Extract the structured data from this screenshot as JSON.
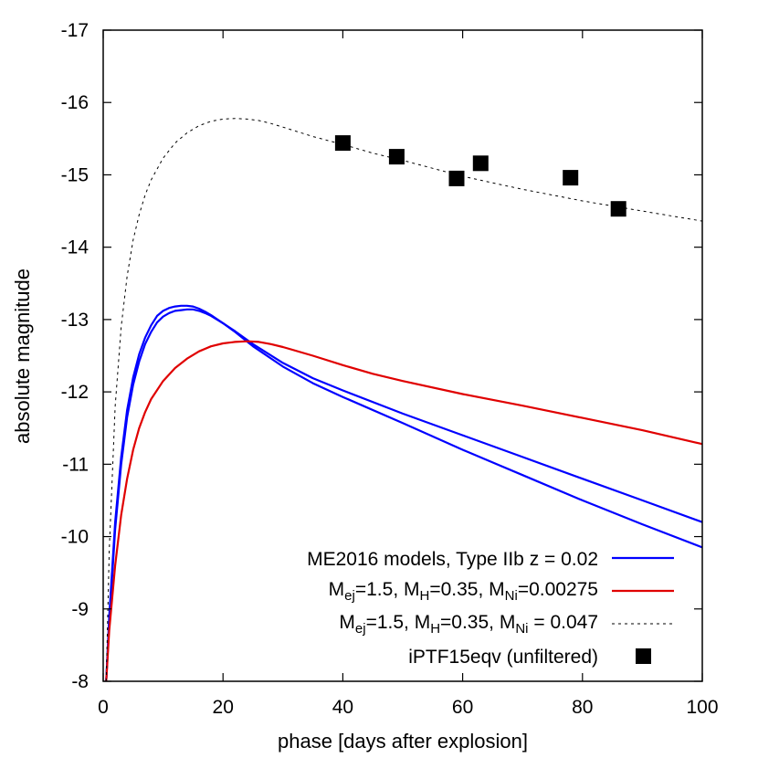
{
  "chart_data": {
    "type": "line",
    "title": "",
    "xlabel": "phase [days after explosion]",
    "ylabel": "absolute magnitude",
    "xlim": [
      0,
      100
    ],
    "ylim": [
      -8,
      -17
    ],
    "y_inverted": true,
    "grid": false,
    "legend_position": "bottom-right",
    "x_ticks": [
      0,
      20,
      40,
      60,
      80,
      100
    ],
    "y_ticks": [
      -8,
      -9,
      -10,
      -11,
      -12,
      -13,
      -14,
      -15,
      -16,
      -17
    ],
    "series": [
      {
        "name": "ME2016 models, Type IIb z = 0.02",
        "color": "#0000ff",
        "style": "solid",
        "x": [
          0.5,
          1,
          2,
          3,
          4,
          5,
          6,
          7,
          8,
          9,
          10,
          11,
          12,
          13,
          14,
          15,
          16,
          17,
          18,
          20,
          22,
          25,
          30,
          35,
          40,
          50,
          60,
          70,
          80,
          90,
          100
        ],
        "y": [
          -8.0,
          -8.9,
          -10.2,
          -11.1,
          -11.75,
          -12.2,
          -12.52,
          -12.75,
          -12.92,
          -13.05,
          -13.12,
          -13.16,
          -13.18,
          -13.19,
          -13.19,
          -13.18,
          -13.15,
          -13.11,
          -13.06,
          -12.95,
          -12.83,
          -12.63,
          -12.35,
          -12.12,
          -11.93,
          -11.57,
          -11.2,
          -10.85,
          -10.5,
          -10.17,
          -9.85
        ]
      },
      {
        "name": "ME2016 models, Type IIb z = 0.02",
        "color": "#0000ff",
        "style": "solid",
        "x": [
          0.5,
          1,
          2,
          3,
          4,
          5,
          6,
          7,
          8,
          9,
          10,
          11,
          12,
          13,
          14,
          15,
          16,
          17,
          18,
          20,
          22,
          25,
          30,
          35,
          40,
          50,
          60,
          70,
          80,
          90,
          100
        ],
        "y": [
          -8.0,
          -8.8,
          -10.1,
          -11.0,
          -11.65,
          -12.1,
          -12.42,
          -12.66,
          -12.83,
          -12.96,
          -13.04,
          -13.09,
          -13.12,
          -13.13,
          -13.14,
          -13.14,
          -13.12,
          -13.09,
          -13.05,
          -12.95,
          -12.84,
          -12.66,
          -12.4,
          -12.19,
          -12.02,
          -11.7,
          -11.4,
          -11.1,
          -10.8,
          -10.5,
          -10.2
        ]
      },
      {
        "name": "M_ej=1.5, M_H=0.35, M_Ni=0.00275",
        "color": "#e00000",
        "style": "solid",
        "x": [
          0.5,
          1,
          2,
          3,
          4,
          5,
          6,
          7,
          8,
          10,
          12,
          14,
          16,
          18,
          20,
          22,
          24,
          26,
          28,
          30,
          35,
          40,
          45,
          50,
          60,
          70,
          80,
          90,
          100
        ],
        "y": [
          -8.0,
          -8.7,
          -9.6,
          -10.3,
          -10.8,
          -11.2,
          -11.5,
          -11.72,
          -11.9,
          -12.15,
          -12.33,
          -12.46,
          -12.56,
          -12.63,
          -12.67,
          -12.69,
          -12.7,
          -12.69,
          -12.66,
          -12.62,
          -12.5,
          -12.37,
          -12.25,
          -12.15,
          -11.97,
          -11.81,
          -11.64,
          -11.47,
          -11.28
        ]
      },
      {
        "name": "M_ej=1.5, M_H=0.35, M_Ni = 0.047",
        "color": "#000000",
        "style": "dashed",
        "x": [
          0.5,
          1,
          2,
          3,
          4,
          5,
          6,
          7,
          8,
          10,
          12,
          14,
          16,
          18,
          20,
          22,
          24,
          26,
          28,
          30,
          35,
          40,
          45,
          50,
          55,
          60,
          65,
          70,
          75,
          80,
          85,
          90,
          95,
          100
        ],
        "y": [
          -8.0,
          -9.8,
          -11.8,
          -12.9,
          -13.6,
          -14.1,
          -14.45,
          -14.72,
          -14.93,
          -15.23,
          -15.44,
          -15.58,
          -15.68,
          -15.74,
          -15.77,
          -15.78,
          -15.77,
          -15.75,
          -15.71,
          -15.66,
          -15.53,
          -15.42,
          -15.3,
          -15.2,
          -15.09,
          -14.98,
          -14.89,
          -14.8,
          -14.72,
          -14.64,
          -14.57,
          -14.5,
          -14.43,
          -14.36
        ]
      }
    ],
    "points": {
      "name": "iPTF15eqv (unfiltered)",
      "color": "#000000",
      "marker": "square",
      "x": [
        40,
        49,
        59,
        63,
        78,
        86
      ],
      "y": [
        -15.44,
        -15.25,
        -14.95,
        -15.16,
        -14.96,
        -14.53
      ]
    },
    "legend": [
      {
        "label": "ME2016 models, Type IIb z = 0.02",
        "color": "#0000ff",
        "style": "solid"
      },
      {
        "label_parts": [
          "M",
          "ej",
          "=1.5, M",
          "H",
          "=0.35, M",
          "Ni",
          "=0.00275"
        ],
        "color": "#e00000",
        "style": "solid"
      },
      {
        "label_parts": [
          "M",
          "ej",
          "=1.5, M",
          "H",
          "=0.35, M",
          "Ni",
          " = 0.047"
        ],
        "color": "#000000",
        "style": "dashed"
      },
      {
        "label": "iPTF15eqv (unfiltered)",
        "color": "#000000",
        "style": "square"
      }
    ]
  }
}
